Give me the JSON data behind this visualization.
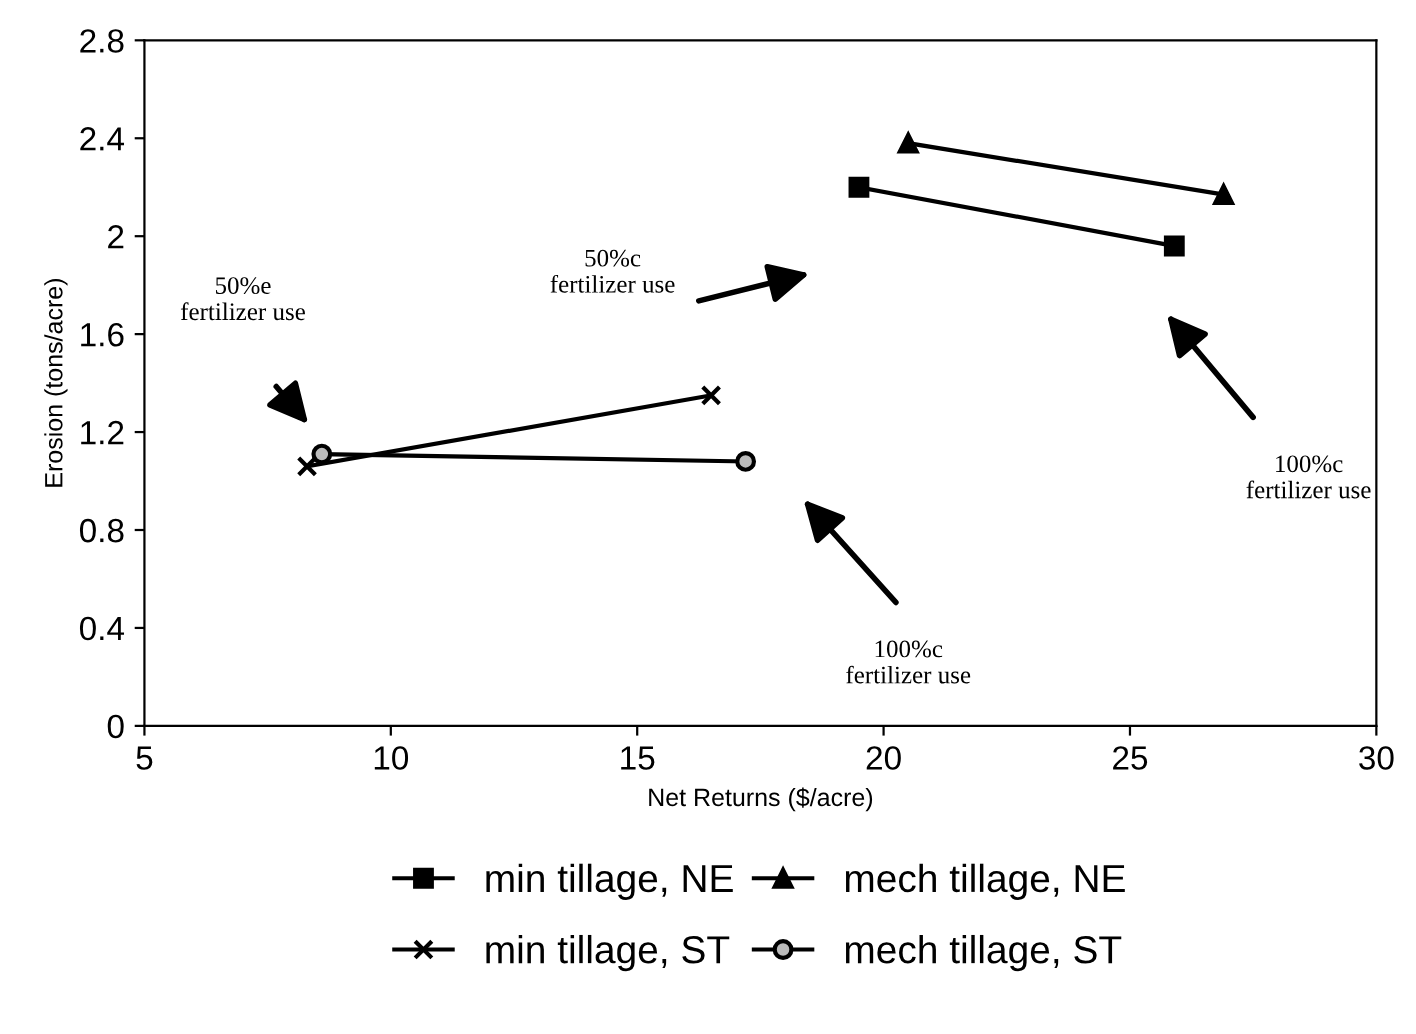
{
  "chart_data": {
    "type": "line",
    "xlabel": "Net Returns ($/acre)",
    "ylabel": "Erosion (tons/acre)",
    "xlim": [
      5,
      30
    ],
    "xticks": [
      5,
      10,
      15,
      20,
      25,
      30
    ],
    "ylim": [
      0,
      2.8
    ],
    "yticks": [
      0,
      0.4,
      0.8,
      1.2,
      1.6,
      2,
      2.4,
      2.8
    ],
    "grid": false,
    "legend": "bottom",
    "series": [
      {
        "name": "min tillage, NE",
        "color": "#000000",
        "marker": "square",
        "x": [
          19.5,
          25.9
        ],
        "values": [
          2.2,
          1.96
        ]
      },
      {
        "name": "mech tillage, NE",
        "color": "#000000",
        "marker": "triangle",
        "x": [
          20.5,
          26.9
        ],
        "values": [
          2.38,
          2.17
        ]
      },
      {
        "name": "min tillage, ST",
        "color": "#000000",
        "marker": "cross",
        "x": [
          8.3,
          16.5
        ],
        "values": [
          1.06,
          1.35
        ]
      },
      {
        "name": "mech tillage, ST",
        "color": "#000000",
        "marker": "circle",
        "x": [
          8.6,
          17.2
        ],
        "values": [
          1.11,
          1.08
        ]
      }
    ],
    "annotations": [
      "50%e\nfertilizer use",
      "50%c\nfertilizer use",
      "100%c\nfertilizer use",
      "100%c\nfertilizer use"
    ]
  }
}
